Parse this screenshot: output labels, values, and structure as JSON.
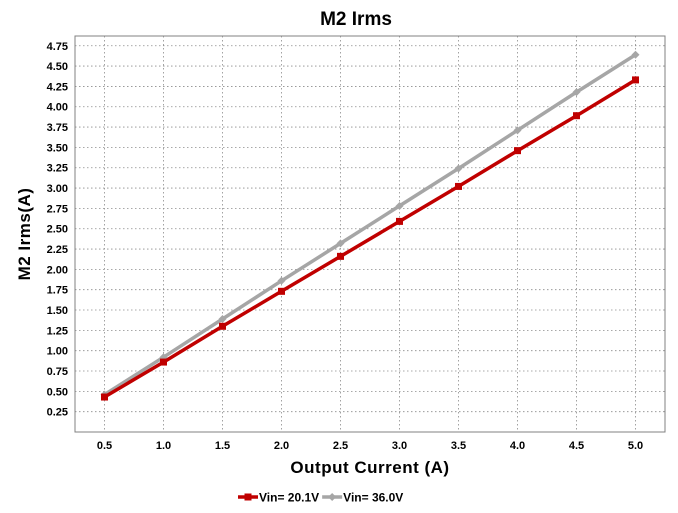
{
  "chart_data": {
    "type": "line",
    "title": "M2 Irms",
    "xlabel": "Output Current (A)",
    "ylabel": "M2 Irms(A)",
    "x": [
      0.5,
      1.0,
      1.5,
      2.0,
      2.5,
      3.0,
      3.5,
      4.0,
      4.5,
      5.0
    ],
    "xticks": [
      "0.5",
      "1.0",
      "1.5",
      "2.0",
      "2.5",
      "3.0",
      "3.5",
      "4.0",
      "4.5",
      "5.0"
    ],
    "xlim": [
      0.25,
      5.25
    ],
    "ylim": [
      0.0,
      4.87
    ],
    "yticks": [
      "0.25",
      "0.50",
      "0.75",
      "1.00",
      "1.25",
      "1.50",
      "1.75",
      "2.00",
      "2.25",
      "2.50",
      "2.75",
      "3.00",
      "3.25",
      "3.50",
      "3.75",
      "4.00",
      "4.25",
      "4.50",
      "4.75"
    ],
    "grid": true,
    "legend_position": "bottom",
    "series": [
      {
        "name": "Vin= 20.1V",
        "color": "#c00000",
        "marker": "square",
        "values": [
          0.43,
          0.86,
          1.3,
          1.73,
          2.16,
          2.59,
          3.02,
          3.46,
          3.89,
          4.33
        ]
      },
      {
        "name": "Vin= 36.0V",
        "color": "#a6a6a6",
        "marker": "diamond",
        "values": [
          0.46,
          0.92,
          1.39,
          1.86,
          2.32,
          2.78,
          3.24,
          3.71,
          4.18,
          4.64
        ]
      }
    ]
  }
}
